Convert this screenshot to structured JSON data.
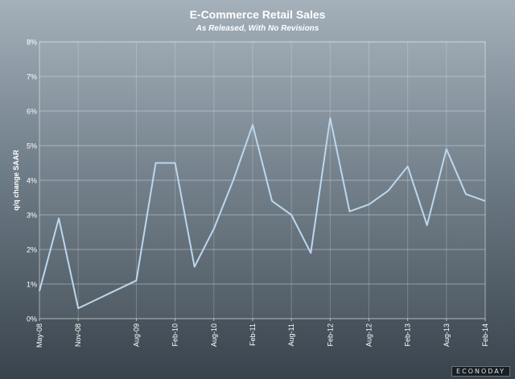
{
  "chart_data": {
    "type": "line",
    "title": "E-Commerce Retail Sales",
    "subtitle": "As Released, With No Revisions",
    "ylabel": "q/q change SAAR",
    "xlabel": "",
    "ylim": [
      0,
      8
    ],
    "y_ticks": [
      0,
      1,
      2,
      3,
      4,
      5,
      6,
      7,
      8
    ],
    "y_tick_labels": [
      "0%",
      "1%",
      "2%",
      "3%",
      "4%",
      "5%",
      "6%",
      "7%",
      "8%"
    ],
    "x_tick_labels": [
      "May-08",
      "Nov-08",
      "Aug-09",
      "Feb-10",
      "Aug-10",
      "Feb-11",
      "Aug-11",
      "Feb-12",
      "Aug-12",
      "Feb-13",
      "Aug-13",
      "Feb-14"
    ],
    "grid": true,
    "legend": "none",
    "line_color": "#bcd7ee",
    "series": [
      {
        "x": [
          "May-08",
          "Aug-08",
          "Nov-08",
          "Aug-09",
          "Nov-09",
          "Feb-10",
          "May-10",
          "Aug-10",
          "Nov-10",
          "Feb-11",
          "May-11",
          "Aug-11",
          "Nov-11",
          "Feb-12",
          "May-12",
          "Aug-12",
          "Nov-12",
          "Feb-13",
          "May-13",
          "Aug-13",
          "Nov-13",
          "Feb-14"
        ],
        "values": [
          0.8,
          2.9,
          0.3,
          1.1,
          4.5,
          4.5,
          1.5,
          2.6,
          4.0,
          5.6,
          3.4,
          3.0,
          1.9,
          5.8,
          3.1,
          3.3,
          3.7,
          4.4,
          2.7,
          4.9,
          3.6,
          3.4
        ]
      }
    ]
  },
  "watermark": "ECONODAY"
}
